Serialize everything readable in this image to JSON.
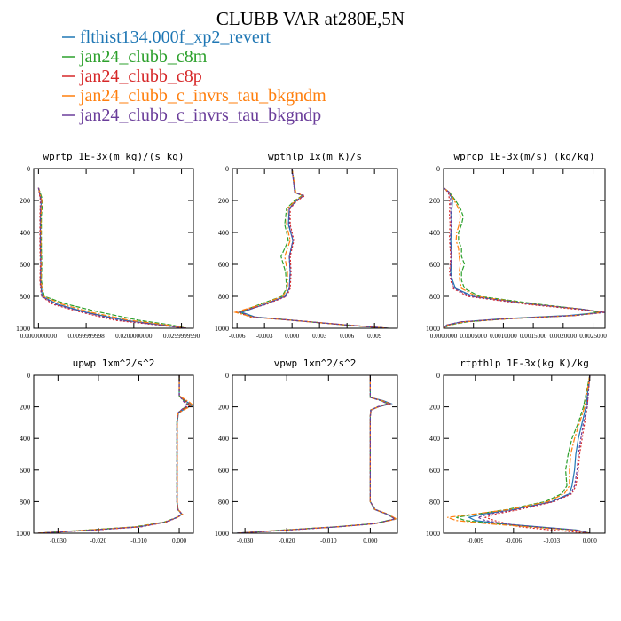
{
  "figure": {
    "title": "CLUBB VAR at280E,5N"
  },
  "legend": [
    {
      "name": "flthist134.000f_xp2_revert",
      "color": "#1f77b4"
    },
    {
      "name": "jan24_clubb_c8m",
      "color": "#2ca02c"
    },
    {
      "name": "jan24_clubb_c8p",
      "color": "#d62728"
    },
    {
      "name": "jan24_clubb_c_invrs_tau_bkgndm",
      "color": "#ff7f0e"
    },
    {
      "name": "jan24_clubb_c_invrs_tau_bkgndp",
      "color": "#6a3d9a"
    }
  ],
  "chart_data": [
    {
      "type": "line",
      "title": "wprtp  1E-3x(m kg)/(s kg)",
      "xlim": [
        -0.001,
        0.0325
      ],
      "ylim": [
        1000,
        0
      ],
      "xticks": [
        0.0,
        0.01,
        0.02,
        0.03
      ],
      "xtick_labels": [
        "0.0000000000",
        "0.0099999998",
        "0.0200000000",
        "0.0299999990"
      ],
      "yticks": [
        0,
        200,
        400,
        600,
        800,
        1000
      ],
      "y": [
        120,
        200,
        300,
        400,
        500,
        600,
        700,
        800,
        850,
        900,
        950,
        980,
        1000
      ],
      "series": [
        {
          "name": "flthist134.000f_xp2_revert",
          "values": [
            0.0,
            0.0006,
            0.0004,
            0.0004,
            0.0004,
            0.0005,
            0.0004,
            0.0008,
            0.004,
            0.01,
            0.018,
            0.026,
            0.031
          ]
        },
        {
          "name": "jan24_clubb_c8m",
          "values": [
            0.0,
            0.0009,
            0.0006,
            0.0006,
            0.0006,
            0.0007,
            0.0006,
            0.0012,
            0.006,
            0.013,
            0.021,
            0.028,
            0.031
          ]
        },
        {
          "name": "jan24_clubb_c8p",
          "values": [
            0.0,
            0.0004,
            0.0003,
            0.0003,
            0.0003,
            0.0004,
            0.0003,
            0.0006,
            0.003,
            0.009,
            0.016,
            0.025,
            0.031
          ]
        },
        {
          "name": "jan24_clubb_c_invrs_tau_bkgndm",
          "values": [
            0.0,
            0.0007,
            0.0005,
            0.0005,
            0.0005,
            0.0006,
            0.0005,
            0.001,
            0.005,
            0.011,
            0.019,
            0.027,
            0.031
          ]
        },
        {
          "name": "jan24_clubb_c_invrs_tau_bkgndp",
          "values": [
            0.0,
            0.0005,
            0.0004,
            0.0004,
            0.0004,
            0.0005,
            0.0004,
            0.0007,
            0.0035,
            0.0095,
            0.017,
            0.0255,
            0.031
          ]
        }
      ]
    },
    {
      "type": "line",
      "title": "wpthlp  1x(m K)/s",
      "xlim": [
        -0.0065,
        0.0115
      ],
      "ylim": [
        1000,
        0
      ],
      "xticks": [
        -0.006,
        -0.003,
        0.0,
        0.003,
        0.006,
        0.009
      ],
      "xtick_labels": [
        "-0.006",
        "-0.003",
        "0.000",
        "0.003",
        "0.006",
        "0.009"
      ],
      "yticks": [
        0,
        200,
        400,
        600,
        800,
        1000
      ],
      "y": [
        0,
        150,
        170,
        200,
        250,
        350,
        450,
        550,
        650,
        750,
        800,
        850,
        900,
        930,
        950,
        980,
        1000
      ],
      "series": [
        {
          "name": "flthist134.000f_xp2_revert",
          "values": [
            0.0,
            0.0003,
            0.0012,
            0.0005,
            -0.0003,
            -0.0004,
            0.0001,
            -0.0003,
            -0.0002,
            -0.0003,
            -0.0008,
            -0.003,
            -0.0055,
            -0.004,
            0.0,
            0.006,
            0.0105
          ]
        },
        {
          "name": "jan24_clubb_c8m",
          "values": [
            0.0,
            0.0004,
            0.0011,
            0.0003,
            -0.0006,
            -0.0008,
            -0.0004,
            -0.0012,
            -0.0007,
            -0.0006,
            -0.0011,
            -0.0035,
            -0.0058,
            -0.0042,
            0.0,
            0.0058,
            0.0105
          ]
        },
        {
          "name": "jan24_clubb_c8p",
          "values": [
            0.0,
            0.0003,
            0.0014,
            0.0006,
            -0.0002,
            -0.0002,
            0.0002,
            -0.0002,
            -0.0001,
            -0.0002,
            -0.0006,
            -0.0028,
            -0.006,
            -0.0045,
            0.0,
            0.0061,
            0.0105
          ]
        },
        {
          "name": "jan24_clubb_c_invrs_tau_bkgndm",
          "values": [
            0.0,
            0.0004,
            0.0012,
            0.0004,
            -0.0005,
            -0.0006,
            -0.0002,
            -0.0008,
            -0.0005,
            -0.0005,
            -0.001,
            -0.0033,
            -0.0062,
            -0.0043,
            0.0,
            0.0059,
            0.0105
          ]
        },
        {
          "name": "jan24_clubb_c_invrs_tau_bkgndp",
          "values": [
            0.0,
            0.0003,
            0.0013,
            0.0005,
            -0.0003,
            -0.0003,
            0.0001,
            -0.0003,
            -0.0002,
            -0.0003,
            -0.0007,
            -0.0029,
            -0.0057,
            -0.0041,
            0.0,
            0.006,
            0.0105
          ]
        }
      ]
    },
    {
      "type": "line",
      "title": "wprcp  1E-3x(m/s) (kg/kg)",
      "xlim": [
        0.0,
        0.0027
      ],
      "ylim": [
        1000,
        0
      ],
      "xticks": [
        0.0,
        0.0005,
        0.001,
        0.0015,
        0.002,
        0.0025
      ],
      "xtick_labels": [
        "0.0000000",
        "0.0005000",
        "0.0010000",
        "0.0015000",
        "0.0020000",
        "0.0025000"
      ],
      "yticks": [
        0,
        200,
        400,
        600,
        800,
        1000
      ],
      "y": [
        120,
        150,
        200,
        250,
        300,
        350,
        400,
        450,
        500,
        550,
        600,
        650,
        700,
        750,
        800,
        850,
        880,
        900,
        920,
        940,
        960,
        980,
        1000
      ],
      "series": [
        {
          "name": "flthist134.000f_xp2_revert",
          "values": [
            0.0,
            0.0001,
            0.00015,
            0.00014,
            0.00013,
            0.00014,
            0.00013,
            0.00012,
            0.00013,
            0.00014,
            0.00013,
            0.00012,
            0.00015,
            0.0002,
            0.0005,
            0.0015,
            0.0023,
            0.00265,
            0.0021,
            0.001,
            0.0003,
            5e-05,
            0.0
          ]
        },
        {
          "name": "jan24_clubb_c8m",
          "values": [
            0.0,
            0.0001,
            0.0002,
            0.00028,
            0.00033,
            0.0003,
            0.00025,
            0.00025,
            0.0003,
            0.0003,
            0.00035,
            0.0003,
            0.0003,
            0.00035,
            0.0006,
            0.0016,
            0.0023,
            0.0026,
            0.0022,
            0.0011,
            0.0004,
            0.0001,
            0.0
          ]
        },
        {
          "name": "jan24_clubb_c8p",
          "values": [
            0.0,
            8e-05,
            0.0001,
            0.0001,
            0.0001,
            0.00011,
            0.0001,
            0.0001,
            0.00011,
            0.00012,
            0.00011,
            0.0001,
            0.00012,
            0.00016,
            0.0004,
            0.0014,
            0.0022,
            0.0027,
            0.0022,
            0.0011,
            0.0003,
            5e-05,
            0.0
          ]
        },
        {
          "name": "jan24_clubb_c_invrs_tau_bkgndm",
          "values": [
            0.0,
            0.0001,
            0.00018,
            0.00025,
            0.00028,
            0.00026,
            0.00022,
            0.00021,
            0.00025,
            0.00026,
            0.00028,
            0.00026,
            0.00027,
            0.0003,
            0.00055,
            0.0015,
            0.0023,
            0.00268,
            0.0022,
            0.0011,
            0.00035,
            8e-05,
            0.0
          ]
        },
        {
          "name": "jan24_clubb_c_invrs_tau_bkgndp",
          "values": [
            0.0,
            0.0001,
            0.00012,
            0.00012,
            0.00012,
            0.00013,
            0.00012,
            0.00011,
            0.00012,
            0.00013,
            0.00012,
            0.00011,
            0.00013,
            0.00018,
            0.00045,
            0.0015,
            0.0023,
            0.0027,
            0.0022,
            0.0011,
            0.0003,
            6e-05,
            0.0
          ]
        }
      ]
    },
    {
      "type": "line",
      "title": "upwp  1xm^2/s^2",
      "xlim": [
        -0.036,
        0.0035
      ],
      "ylim": [
        1000,
        0
      ],
      "xticks": [
        -0.03,
        -0.02,
        -0.01,
        0.0
      ],
      "xtick_labels": [
        "-0.030",
        "-0.020",
        "-0.010",
        "0.000"
      ],
      "yticks": [
        0,
        200,
        400,
        600,
        800,
        1000
      ],
      "y": [
        0,
        130,
        170,
        190,
        210,
        240,
        300,
        500,
        700,
        800,
        850,
        880,
        900,
        930,
        960,
        980,
        1000
      ],
      "series": [
        {
          "name": "flthist134.000f_xp2_revert",
          "values": [
            0.0,
            0.0,
            0.002,
            0.0033,
            0.0015,
            -0.0002,
            -0.0005,
            -0.0005,
            -0.0005,
            -0.0005,
            -0.0003,
            0.0007,
            -0.0005,
            -0.0035,
            -0.01,
            -0.022,
            -0.035
          ]
        },
        {
          "name": "jan24_clubb_c8m",
          "values": [
            0.0,
            0.0,
            0.0015,
            0.0025,
            0.001,
            -0.0004,
            -0.0006,
            -0.0006,
            -0.0006,
            -0.0006,
            -0.0004,
            0.0006,
            -0.0006,
            -0.0038,
            -0.011,
            -0.023,
            -0.035
          ]
        },
        {
          "name": "jan24_clubb_c8p",
          "values": [
            0.0,
            0.0,
            0.0018,
            0.0028,
            0.0012,
            -0.0003,
            -0.0005,
            -0.0005,
            -0.0005,
            -0.0005,
            -0.0003,
            0.0008,
            -0.0004,
            -0.0032,
            -0.0095,
            -0.021,
            -0.035
          ]
        },
        {
          "name": "jan24_clubb_c_invrs_tau_bkgndm",
          "values": [
            0.0,
            0.0,
            0.0025,
            0.0034,
            0.0018,
            -0.0003,
            -0.0005,
            -0.0005,
            -0.0005,
            -0.0005,
            -0.0003,
            0.0007,
            -0.0005,
            -0.0036,
            -0.0105,
            -0.0225,
            -0.035
          ]
        },
        {
          "name": "jan24_clubb_c_invrs_tau_bkgndp",
          "values": [
            0.0,
            0.0,
            0.0012,
            0.0022,
            0.0009,
            -0.0004,
            -0.0006,
            -0.0006,
            -0.0006,
            -0.0006,
            -0.0004,
            0.0006,
            -0.0006,
            -0.0034,
            -0.0098,
            -0.0215,
            -0.035
          ]
        }
      ]
    },
    {
      "type": "line",
      "title": "vpwp  1xm^2/s^2",
      "xlim": [
        -0.033,
        0.0065
      ],
      "ylim": [
        1000,
        0
      ],
      "xticks": [
        -0.03,
        -0.02,
        -0.01,
        0.0
      ],
      "xtick_labels": [
        "-0.030",
        "-0.020",
        "-0.010",
        "0.000"
      ],
      "yticks": [
        0,
        200,
        400,
        600,
        800,
        1000
      ],
      "y": [
        0,
        140,
        160,
        180,
        200,
        220,
        260,
        400,
        600,
        800,
        850,
        880,
        910,
        940,
        960,
        980,
        1000
      ],
      "series": [
        {
          "name": "flthist134.000f_xp2_revert",
          "values": [
            0.0,
            0.0,
            0.003,
            0.005,
            0.002,
            0.0002,
            0.0,
            0.0,
            0.0,
            0.0,
            0.001,
            0.004,
            0.006,
            0.001,
            -0.008,
            -0.02,
            -0.032
          ]
        },
        {
          "name": "jan24_clubb_c8m",
          "values": [
            0.0,
            0.0,
            0.0025,
            0.0042,
            0.0018,
            0.0001,
            0.0,
            0.0,
            0.0,
            0.0,
            0.0012,
            0.0042,
            0.0058,
            0.0008,
            -0.0085,
            -0.021,
            -0.032
          ]
        },
        {
          "name": "jan24_clubb_c8p",
          "values": [
            0.0,
            0.0,
            0.0028,
            0.0047,
            0.0019,
            0.0002,
            0.0,
            0.0,
            0.0,
            0.0,
            0.0011,
            0.0041,
            0.0062,
            0.0012,
            -0.0078,
            -0.0195,
            -0.032
          ]
        },
        {
          "name": "jan24_clubb_c_invrs_tau_bkgndm",
          "values": [
            0.0,
            0.0,
            0.0027,
            0.0046,
            0.0019,
            0.0001,
            0.0,
            0.0,
            0.0,
            0.0,
            0.0011,
            0.0043,
            0.0063,
            0.0011,
            -0.0082,
            -0.0205,
            -0.032
          ]
        },
        {
          "name": "jan24_clubb_c_invrs_tau_bkgndp",
          "values": [
            0.0,
            0.0,
            0.0024,
            0.0041,
            0.0017,
            0.0001,
            0.0,
            0.0,
            0.0,
            0.0,
            0.0012,
            0.004,
            0.0059,
            0.0009,
            -0.008,
            -0.02,
            -0.032
          ]
        }
      ]
    },
    {
      "type": "line",
      "title": "rtpthlp  1E-3x(kg K)/kg",
      "xlim": [
        -0.0115,
        0.0012
      ],
      "ylim": [
        1000,
        0
      ],
      "xticks": [
        -0.009,
        -0.006,
        -0.003,
        0.0
      ],
      "xtick_labels": [
        "-0.009",
        "-0.006",
        "-0.003",
        "0.000"
      ],
      "yticks": [
        0,
        200,
        400,
        600,
        800,
        1000
      ],
      "y": [
        0,
        200,
        300,
        400,
        500,
        600,
        700,
        750,
        800,
        850,
        880,
        900,
        920,
        940,
        960,
        980,
        1000
      ],
      "series": [
        {
          "name": "flthist134.000f_xp2_revert",
          "values": [
            0.0,
            -0.0003,
            -0.0006,
            -0.0009,
            -0.0011,
            -0.0012,
            -0.0014,
            -0.0016,
            -0.003,
            -0.006,
            -0.0085,
            -0.0095,
            -0.009,
            -0.007,
            -0.004,
            -0.001,
            0.0
          ]
        },
        {
          "name": "jan24_clubb_c8m",
          "values": [
            0.0,
            -0.0005,
            -0.0009,
            -0.0014,
            -0.0017,
            -0.0019,
            -0.0018,
            -0.0022,
            -0.0035,
            -0.0065,
            -0.009,
            -0.0105,
            -0.0098,
            -0.0075,
            -0.0045,
            -0.0012,
            0.0
          ]
        },
        {
          "name": "jan24_clubb_c8p",
          "values": [
            0.0,
            -0.0002,
            -0.0004,
            -0.0006,
            -0.0008,
            -0.0009,
            -0.0011,
            -0.0014,
            -0.0028,
            -0.0055,
            -0.0075,
            -0.0082,
            -0.0075,
            -0.0065,
            -0.0055,
            -0.003,
            0.0
          ]
        },
        {
          "name": "jan24_clubb_c_invrs_tau_bkgndm",
          "values": [
            0.0,
            -0.0004,
            -0.0008,
            -0.0012,
            -0.0015,
            -0.0016,
            -0.0016,
            -0.002,
            -0.0033,
            -0.0063,
            -0.0092,
            -0.0112,
            -0.0105,
            -0.008,
            -0.0048,
            -0.0013,
            0.0
          ]
        },
        {
          "name": "jan24_clubb_c_invrs_tau_bkgndp",
          "values": [
            0.0,
            -0.0002,
            -0.0005,
            -0.0007,
            -0.0009,
            -0.001,
            -0.0012,
            -0.0015,
            -0.0029,
            -0.0058,
            -0.008,
            -0.0088,
            -0.0082,
            -0.0068,
            -0.0042,
            -0.0011,
            0.0
          ]
        }
      ]
    }
  ]
}
